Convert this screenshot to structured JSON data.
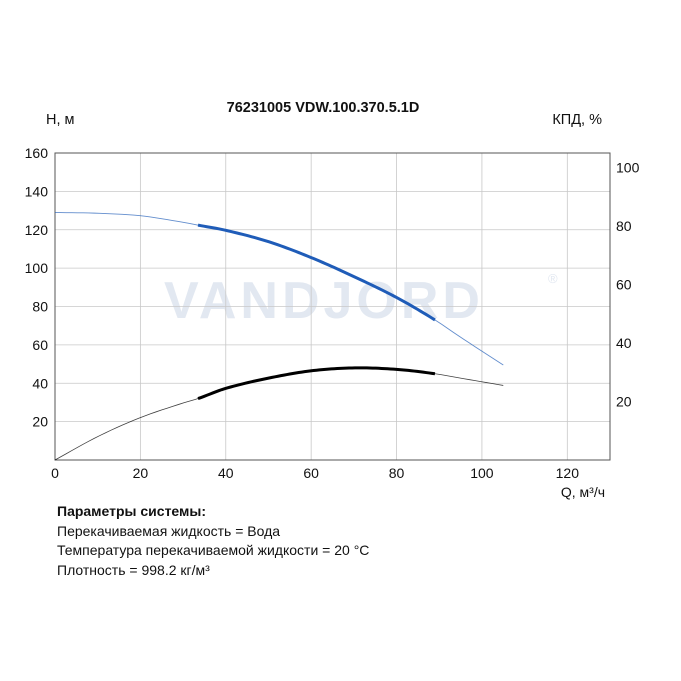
{
  "chart_data": {
    "type": "line",
    "title": "76231005 VDW.100.370.5.1D",
    "ylabel_left": "H, м",
    "ylabel_right": "КПД, %",
    "xlabel": "Q, м³/ч",
    "xlim": [
      0,
      130
    ],
    "ylim": [
      0,
      160
    ],
    "y2lim": [
      0,
      105
    ],
    "x_ticks": [
      "0",
      "20",
      "40",
      "60",
      "80",
      "100",
      "120"
    ],
    "y_ticks": [
      "20",
      "40",
      "60",
      "80",
      "100",
      "120",
      "140",
      "160"
    ],
    "y2_ticks": [
      "20",
      "40",
      "60",
      "80",
      "100"
    ],
    "grid": true,
    "watermark": "VANDJORD",
    "series": [
      {
        "axis": "left",
        "color": "#1f5cb8",
        "full_range": [
          0,
          105
        ],
        "working_range": [
          33.5,
          89
        ],
        "x": [
          0,
          10,
          20,
          30,
          33.5,
          40,
          50,
          60,
          70,
          80,
          89,
          95,
          105
        ],
        "y": [
          129,
          128.6,
          127.3,
          123.9,
          122.4,
          119.7,
          113.8,
          105.5,
          95.6,
          84.7,
          73,
          64,
          49.5
        ]
      },
      {
        "axis": "right",
        "color": "#000000",
        "full_range": [
          0,
          105
        ],
        "working_range": [
          33.5,
          89
        ],
        "x": [
          0,
          10,
          20,
          30,
          33.5,
          40,
          50,
          60,
          70,
          80,
          89,
          95,
          105
        ],
        "y": [
          0,
          8,
          14.5,
          19.5,
          21,
          24.5,
          28,
          30.5,
          31.5,
          31,
          29.5,
          28,
          25.5
        ]
      }
    ]
  },
  "system_params": {
    "title": "Параметры системы:",
    "lines": [
      "Перекачиваемая жидкость = Вода",
      "Температура перекачиваемой жидкости = 20 °С",
      "Плотность = 998.2 кг/м³"
    ]
  }
}
